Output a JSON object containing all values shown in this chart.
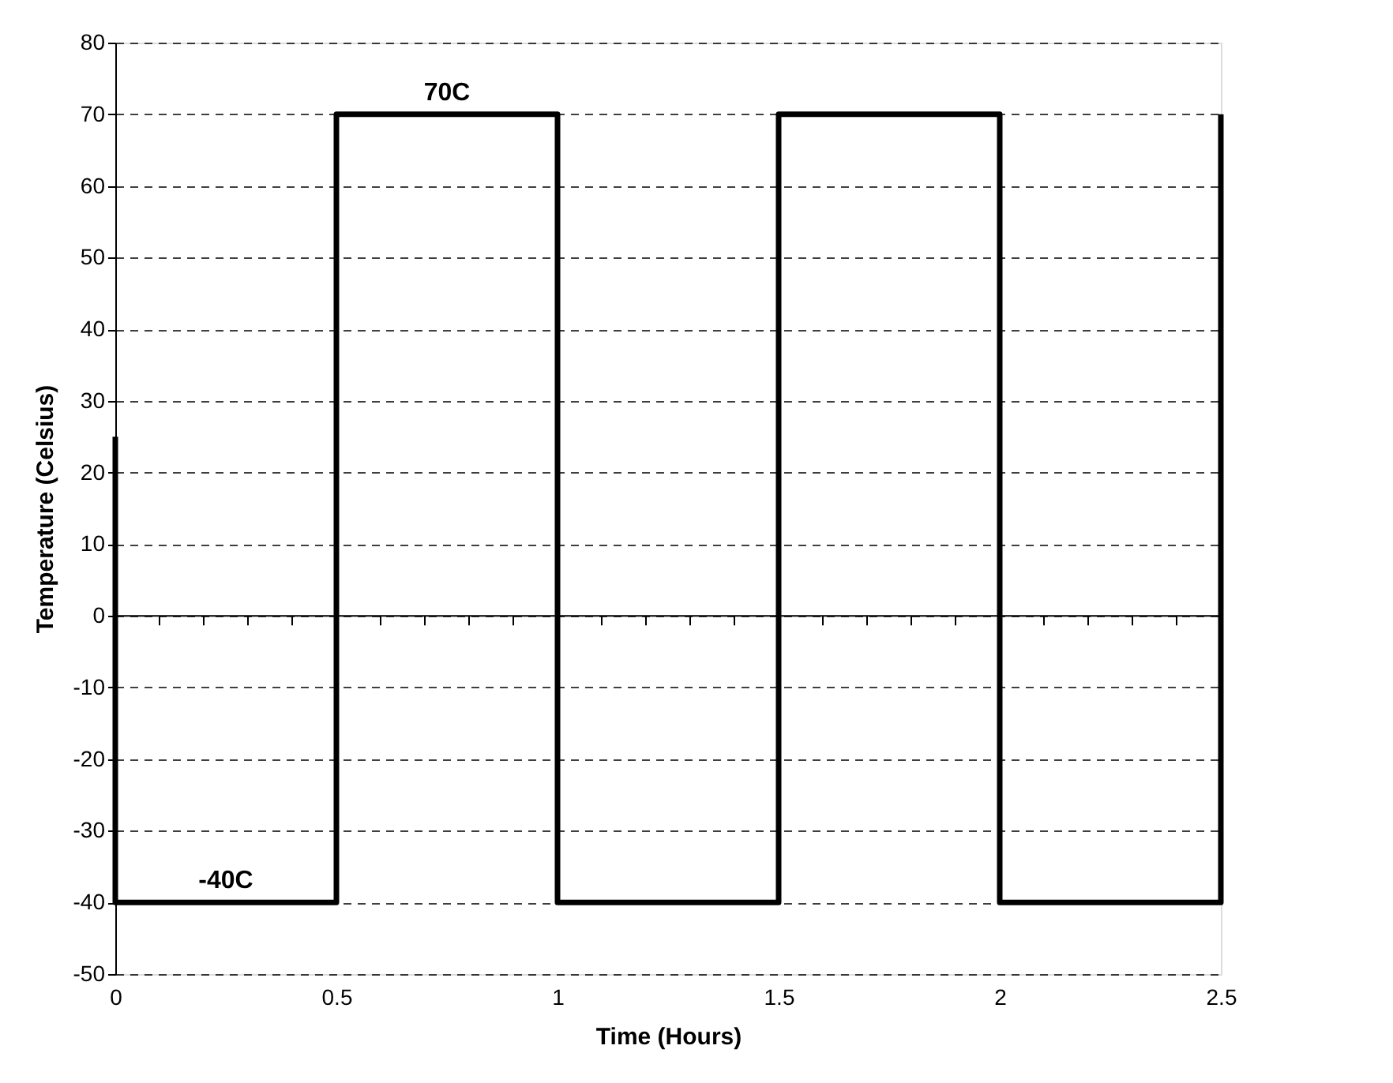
{
  "chart_data": {
    "type": "line",
    "xlabel": "Time (Hours)",
    "ylabel": "Temperature (Celsius)",
    "x": [
      0,
      0,
      0.5,
      0.5,
      1,
      1,
      1.5,
      1.5,
      2,
      2,
      2.5,
      2.5
    ],
    "series": [
      {
        "color": "#000000",
        "values": [
          25,
          -40,
          -40,
          70,
          70,
          -40,
          -40,
          70,
          70,
          -40,
          -40,
          70
        ]
      }
    ],
    "xlim": [
      0,
      2.5
    ],
    "ylim": [
      -50,
      80
    ],
    "xticks": [
      0,
      {
        "value": 0.1,
        "label": null
      },
      {
        "value": 0.2,
        "label": null
      },
      {
        "value": 0.3,
        "label": null
      },
      {
        "value": 0.4,
        "label": null
      },
      0.5,
      {
        "value": 0.6,
        "label": null
      },
      {
        "value": 0.7,
        "label": null
      },
      {
        "value": 0.8,
        "label": null
      },
      {
        "value": 0.9,
        "label": null
      },
      1,
      {
        "value": 1.1,
        "label": null
      },
      {
        "value": 1.2,
        "label": null
      },
      {
        "value": 1.3,
        "label": null
      },
      {
        "value": 1.4,
        "label": null
      },
      1.5,
      {
        "value": 1.6,
        "label": null
      },
      {
        "value": 1.7,
        "label": null
      },
      {
        "value": 1.8,
        "label": null
      },
      {
        "value": 1.9,
        "label": null
      },
      2,
      {
        "value": 2.1,
        "label": null
      },
      {
        "value": 2.2,
        "label": null
      },
      {
        "value": 2.3,
        "label": null
      },
      {
        "value": 2.4,
        "label": null
      },
      2.5
    ],
    "yticks": [
      -50,
      -40,
      -30,
      -20,
      -10,
      0,
      10,
      20,
      30,
      40,
      50,
      60,
      70,
      80
    ],
    "grid": "y",
    "line_style": "solid",
    "marker": "none",
    "ref_lines": [
      {
        "axis": "y",
        "value": 0,
        "color": "#000000"
      }
    ],
    "annotations": [
      {
        "text": "70C",
        "x": 0.75,
        "y": 70
      },
      {
        "text": "-40C",
        "x": 0.25,
        "y": -40
      }
    ]
  }
}
